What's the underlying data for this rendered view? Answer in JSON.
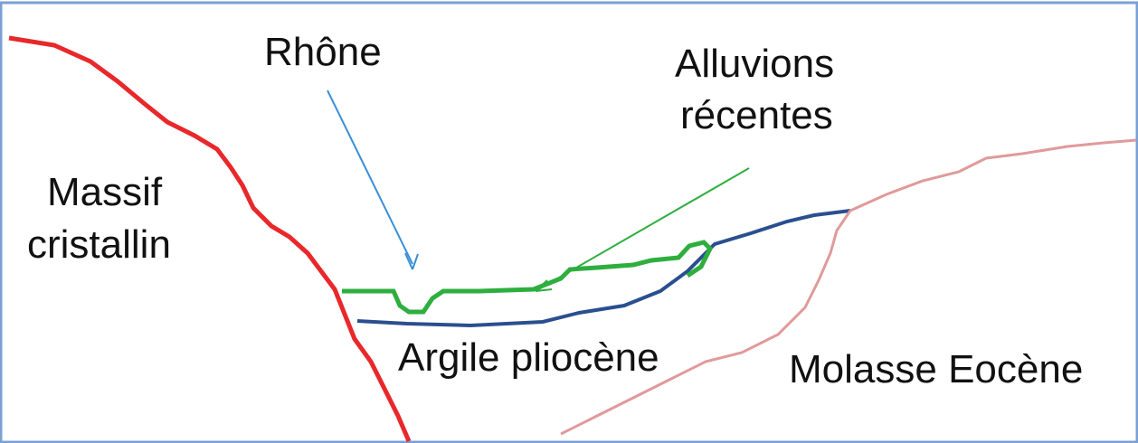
{
  "labels": {
    "rhone": "Rhône",
    "alluvions": [
      "Alluvions",
      "récentes"
    ],
    "massif": [
      "Massif",
      "cristallin"
    ],
    "argile": "Argile pliocène",
    "molasse": "Molasse Eocène"
  }
}
